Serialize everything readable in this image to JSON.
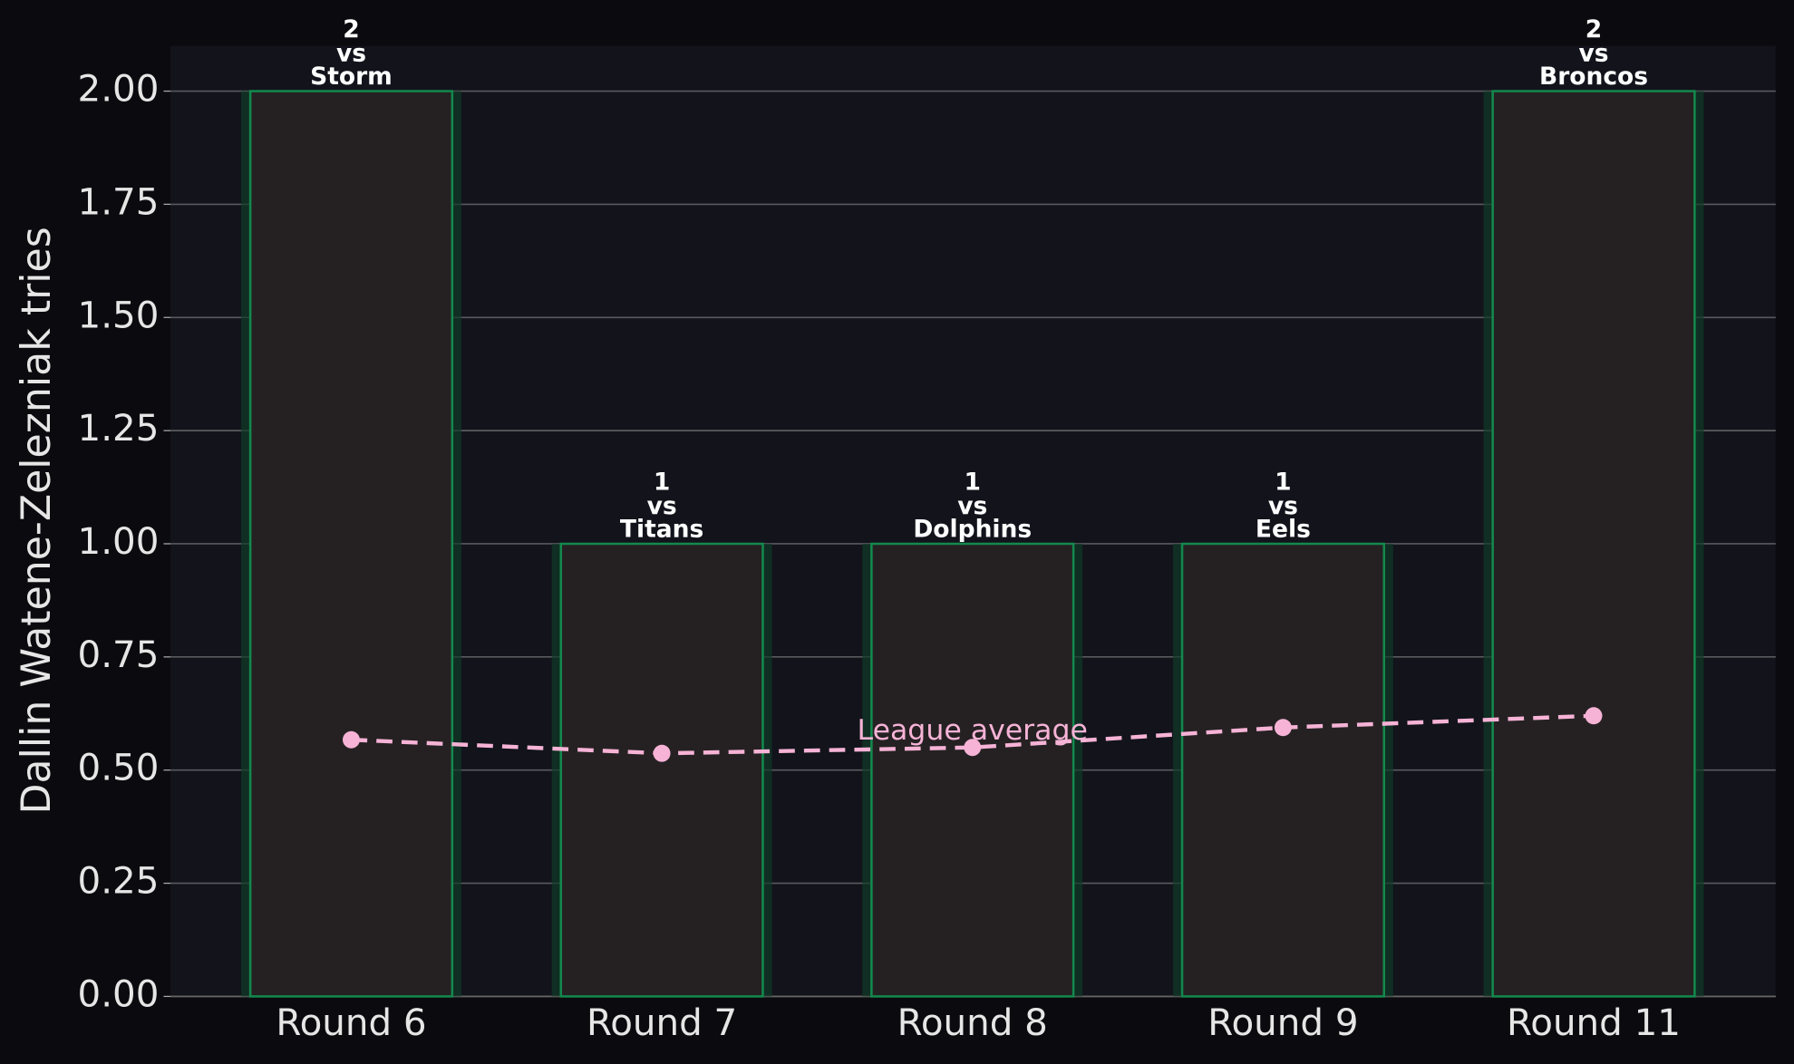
{
  "chart_data": {
    "type": "bar",
    "y_label": "Dallin Watene-Zelezniak tries",
    "categories": [
      "Round 6",
      "Round 7",
      "Round 8",
      "Round 9",
      "Round 11"
    ],
    "values": [
      2,
      1,
      1,
      1,
      2
    ],
    "opponents": [
      [
        "vs",
        "Storm"
      ],
      [
        "vs",
        "Titans"
      ],
      [
        "vs",
        "Dolphins"
      ],
      [
        "vs",
        "Eels"
      ],
      [
        "vs",
        "Broncos"
      ]
    ],
    "color": "#252122",
    "edge_color": "#13894d",
    "line_series": {
      "name": "League average",
      "color": "#f6b3d6",
      "values": [
        0.567,
        0.537,
        0.55,
        0.594,
        0.62
      ]
    },
    "ylim": [
      0,
      2.1
    ],
    "yticks": [
      {
        "value": 0,
        "label": "0.00"
      },
      {
        "value": 0.25,
        "label": "0.25"
      },
      {
        "value": 0.5,
        "label": "0.50"
      },
      {
        "value": 0.75,
        "label": "0.75"
      },
      {
        "value": 1,
        "label": "1.00"
      },
      {
        "value": 1.25,
        "label": "1.25"
      },
      {
        "value": 1.5,
        "label": "1.50"
      },
      {
        "value": 1.75,
        "label": "1.75"
      },
      {
        "value": 2,
        "label": "2.00"
      }
    ],
    "grid": true
  }
}
